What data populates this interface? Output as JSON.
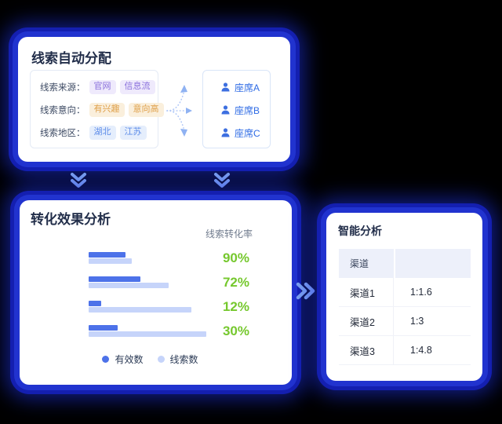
{
  "colors": {
    "glow_blue": "#2133cf",
    "card_bg": "#ffffff",
    "title": "#222E4A",
    "agent_blue": "#2E6BE5",
    "bar_dark": "#4D72E9",
    "bar_light": "#C6D4FA",
    "rate_green": "#76C82E",
    "tag_purple_text": "#8A70DC",
    "tag_orange_text": "#DFA04A",
    "tag_blue_text": "#5E8DE9",
    "connector_blue": "#7CA2F0",
    "table_header_bg": "#EDF0FA"
  },
  "icons": {
    "agent": "person-icon",
    "flow_split": "fork-dotted-arrows-icon",
    "flow_down": "chevron-double-down-icon",
    "flow_right": "chevron-double-right-icon",
    "legend_dot": "circle-dot"
  },
  "cards": {
    "distribution": {
      "title": "线索自动分配",
      "criteria": [
        {
          "label": "线索来源：",
          "style": "purple",
          "tags": [
            "官网",
            "信息流"
          ]
        },
        {
          "label": "线索意向：",
          "style": "orange",
          "tags": [
            "有兴趣",
            "意向高"
          ]
        },
        {
          "label": "线索地区：",
          "style": "blue",
          "tags": [
            "湖北",
            "江苏"
          ]
        }
      ],
      "agents": [
        "座席A",
        "座席B",
        "座席C"
      ]
    },
    "conversion": {
      "title": "转化效果分析",
      "rate_label": "线索转化率",
      "legend": [
        {
          "label": "有效数",
          "color": "#4D72E9"
        },
        {
          "label": "线索数",
          "color": "#C6D4FA"
        }
      ]
    },
    "analysis": {
      "title": "智能分析",
      "table": {
        "header": [
          "渠道",
          ""
        ],
        "rows": [
          {
            "channel": "渠道1",
            "value": "1:1.6"
          },
          {
            "channel": "渠道2",
            "value": "1:3"
          },
          {
            "channel": "渠道3",
            "value": "1:4.8"
          }
        ]
      }
    }
  },
  "chart_data": {
    "type": "bar",
    "orientation": "horizontal",
    "title": "转化效果分析",
    "value_label": "线索转化率",
    "legend_position": "bottom",
    "categories": [
      "",
      "",
      "",
      ""
    ],
    "series": [
      {
        "name": "有效数",
        "color": "#4D72E9",
        "values": [
          47,
          66,
          16,
          37
        ]
      },
      {
        "name": "线索数",
        "color": "#C6D4FA",
        "values": [
          55,
          102,
          131,
          150
        ]
      }
    ],
    "value_units": "relative bar length, px (no axis shown)",
    "conversion_rates": [
      "90%",
      "72%",
      "12%",
      "30%"
    ],
    "grid": false
  }
}
